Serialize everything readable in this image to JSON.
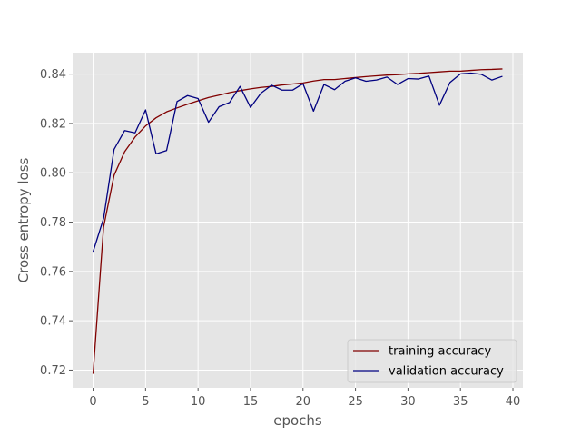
{
  "chart_data": {
    "type": "line",
    "xlabel": "epochs",
    "ylabel": "Cross entropy loss",
    "xlim": [
      -1.95,
      40.95
    ],
    "ylim": [
      0.7128,
      0.8487
    ],
    "xticks": [
      0,
      5,
      10,
      15,
      20,
      25,
      30,
      35,
      40
    ],
    "yticks": [
      0.72,
      0.74,
      0.76,
      0.78,
      0.8,
      0.82,
      0.84
    ],
    "ytick_labels": [
      "0.72",
      "0.74",
      "0.76",
      "0.78",
      "0.80",
      "0.82",
      "0.84"
    ],
    "grid": true,
    "legend_position": "lower-right",
    "x": [
      0,
      1,
      2,
      3,
      4,
      5,
      6,
      7,
      8,
      9,
      10,
      11,
      12,
      13,
      14,
      15,
      16,
      17,
      18,
      19,
      20,
      21,
      22,
      23,
      24,
      25,
      26,
      27,
      28,
      29,
      30,
      31,
      32,
      33,
      34,
      35,
      36,
      37,
      38,
      39
    ],
    "series": [
      {
        "name": "training accuracy",
        "color": "#800000",
        "values": [
          0.7185,
          0.778,
          0.799,
          0.8085,
          0.8145,
          0.819,
          0.8223,
          0.8247,
          0.8263,
          0.8278,
          0.8292,
          0.8305,
          0.8315,
          0.8325,
          0.8333,
          0.834,
          0.8346,
          0.835,
          0.8356,
          0.836,
          0.8364,
          0.8372,
          0.8378,
          0.8378,
          0.8382,
          0.8386,
          0.839,
          0.8393,
          0.8396,
          0.8398,
          0.8401,
          0.8403,
          0.8406,
          0.8409,
          0.8412,
          0.8412,
          0.8415,
          0.8418,
          0.8419,
          0.8421
        ]
      },
      {
        "name": "validation accuracy",
        "color": "#000080",
        "values": [
          0.768,
          0.7815,
          0.8095,
          0.8171,
          0.8162,
          0.8255,
          0.8077,
          0.809,
          0.8289,
          0.8313,
          0.8301,
          0.8205,
          0.8268,
          0.8285,
          0.835,
          0.8265,
          0.8323,
          0.8355,
          0.8335,
          0.8335,
          0.8361,
          0.825,
          0.8358,
          0.8337,
          0.8371,
          0.8385,
          0.8371,
          0.8376,
          0.8388,
          0.8358,
          0.8382,
          0.838,
          0.8392,
          0.8274,
          0.8366,
          0.8401,
          0.8404,
          0.8399,
          0.8376,
          0.8391
        ]
      }
    ]
  }
}
